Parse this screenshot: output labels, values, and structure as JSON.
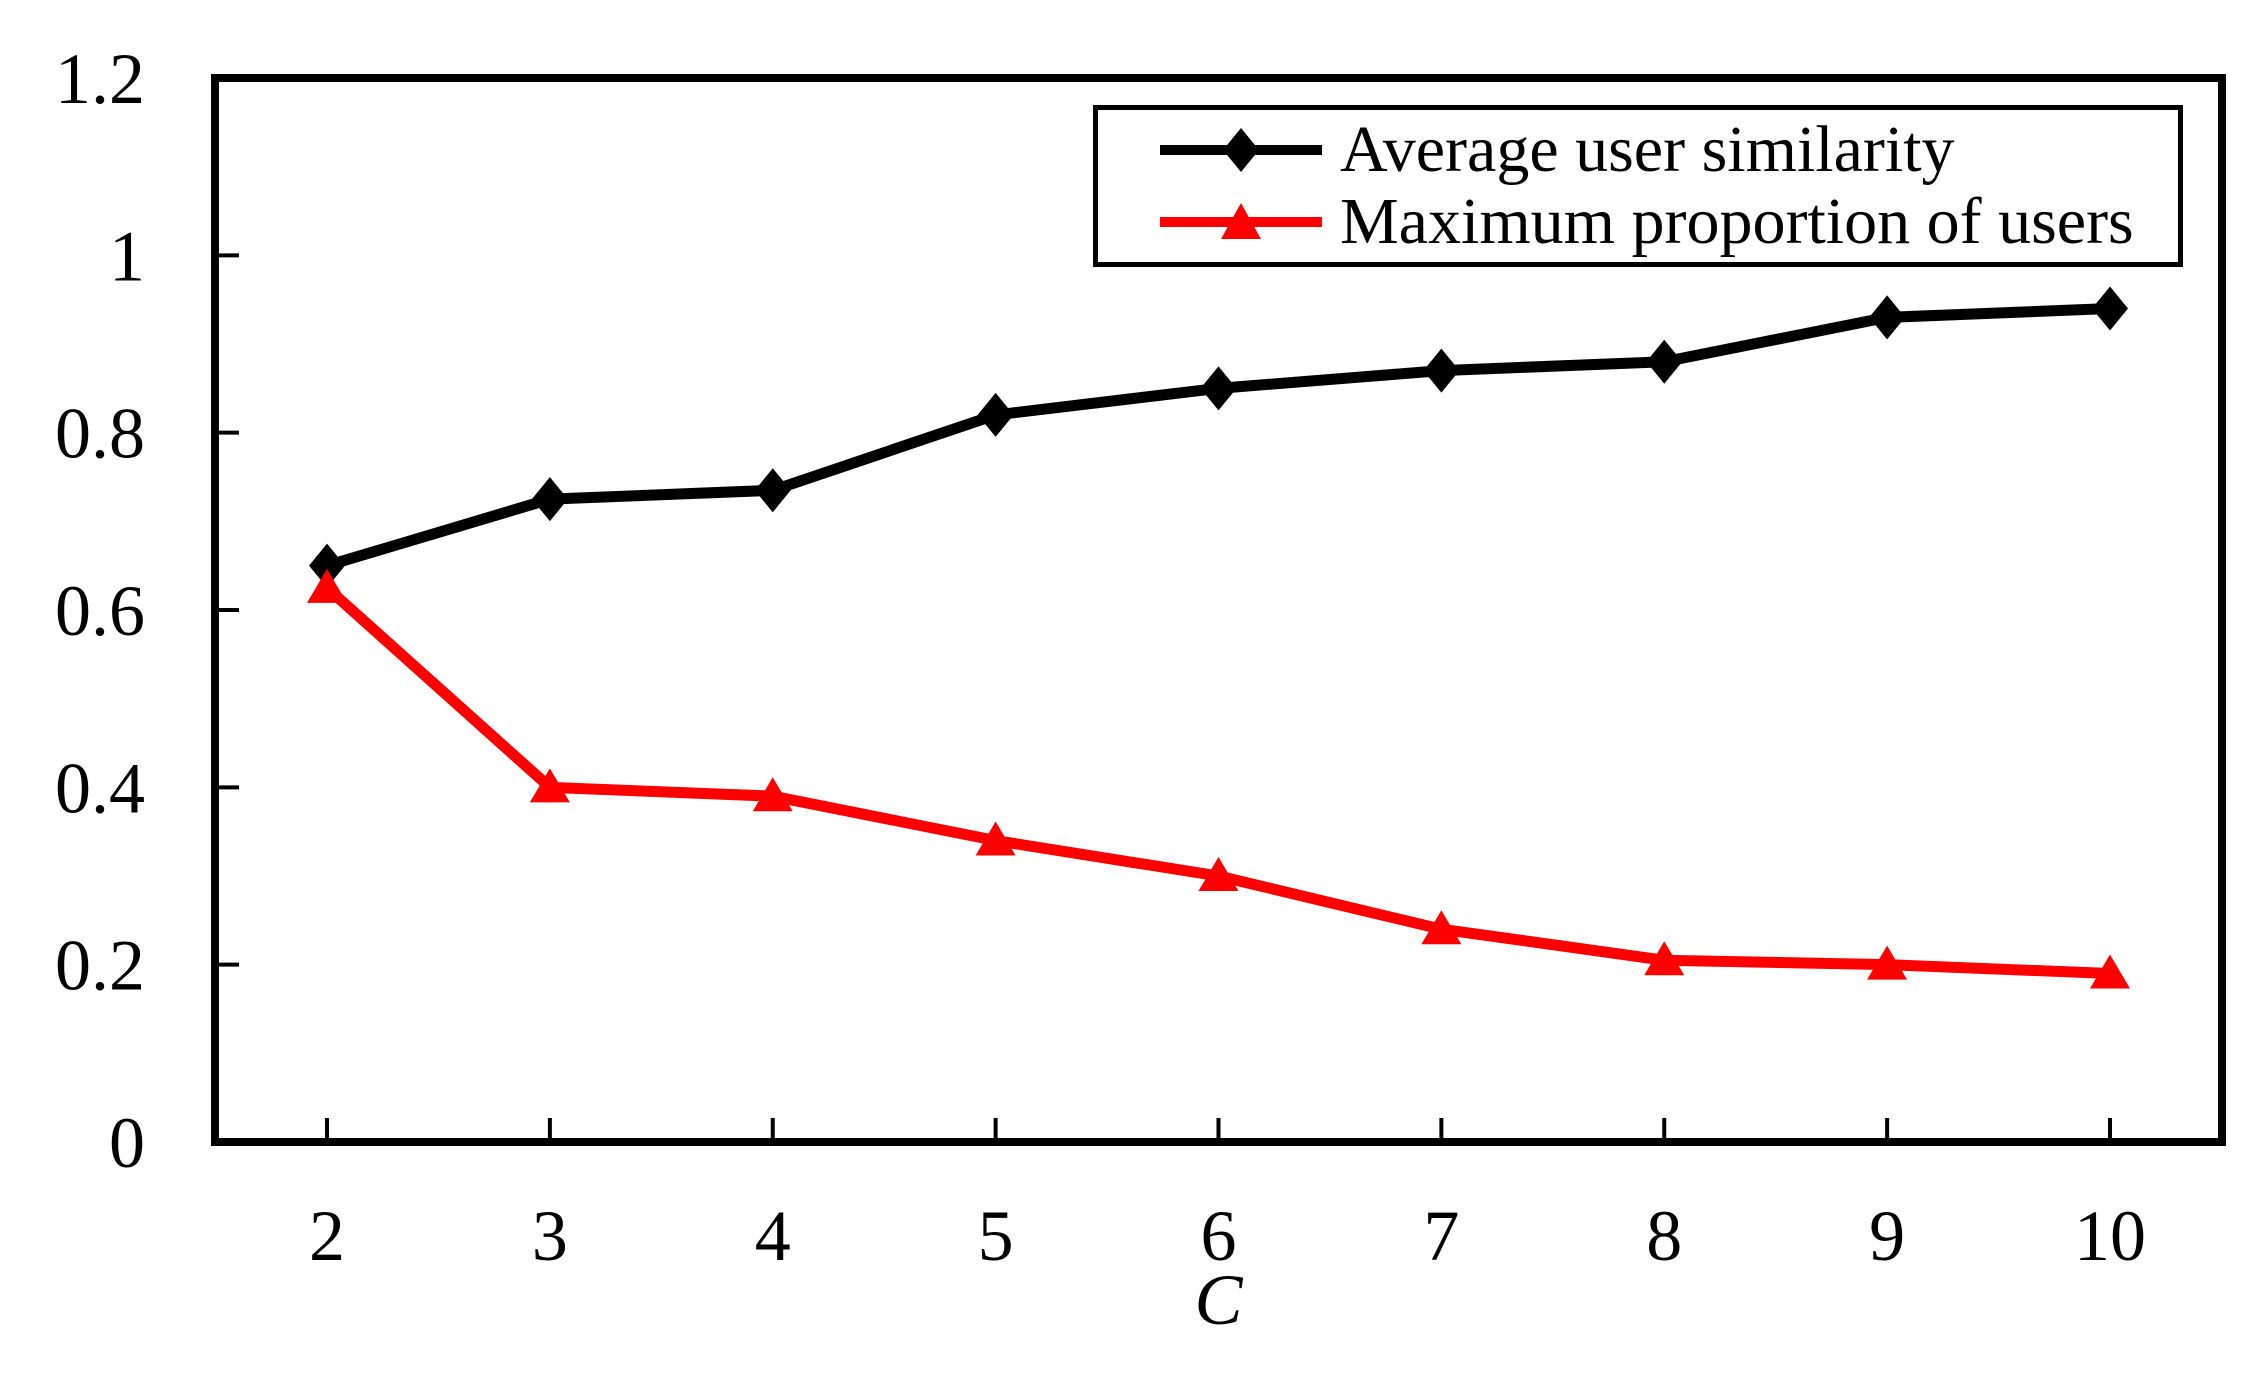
{
  "chart_data": {
    "type": "line",
    "xlabel": "C",
    "ylabel": "",
    "x": [
      2,
      3,
      4,
      5,
      6,
      7,
      8,
      9,
      10
    ],
    "xtick_labels": [
      "2",
      "3",
      "4",
      "5",
      "6",
      "7",
      "8",
      "9",
      "10"
    ],
    "ylim": [
      0,
      1.2
    ],
    "yticks": [
      0,
      0.2,
      0.4,
      0.6,
      0.8,
      1,
      1.2
    ],
    "ytick_labels": [
      "0",
      "0.2",
      "0.4",
      "0.6",
      "0.8",
      "1",
      "1.2"
    ],
    "grid": false,
    "legend_position": "top-right",
    "background": "#ffffff",
    "axis_color": "#000000",
    "series": [
      {
        "name": "Average user similarity",
        "color": "#000000",
        "marker": "diamond",
        "values": [
          0.65,
          0.725,
          0.735,
          0.82,
          0.85,
          0.87,
          0.88,
          0.93,
          0.94
        ]
      },
      {
        "name": "Maximum proportion of users",
        "color": "#ff0000",
        "marker": "triangle",
        "values": [
          0.625,
          0.4,
          0.39,
          0.34,
          0.3,
          0.24,
          0.205,
          0.2,
          0.19
        ]
      }
    ]
  }
}
